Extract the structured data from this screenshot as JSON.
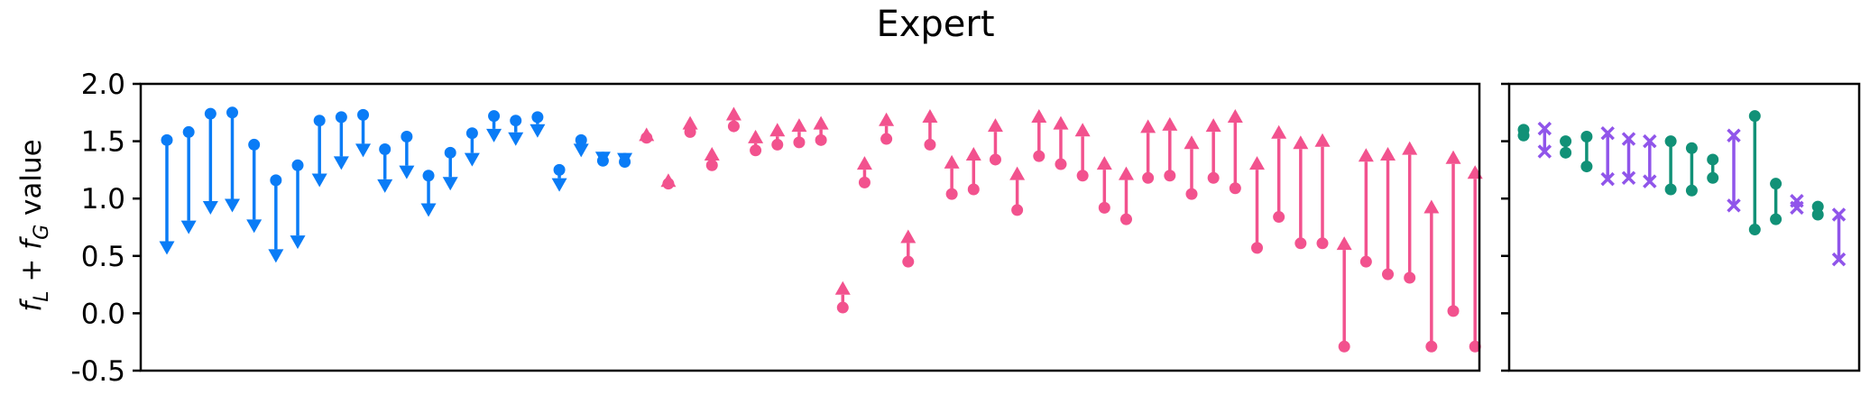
{
  "chart_data": [
    {
      "type": "arrow-range",
      "title": "Expert",
      "ylabel": {
        "prefix": "f",
        "sub1": "L",
        "plus": " + ",
        "f2": "f",
        "sub2": "G",
        "suffix": " value"
      },
      "ylim": [
        -0.5,
        2.0
      ],
      "yticks": [
        -0.5,
        0.0,
        0.5,
        1.0,
        1.5,
        2.0
      ],
      "ytick_labels": [
        "-0.5",
        "0.0",
        "0.5",
        "1.0",
        "1.5",
        "2.0"
      ],
      "xticks": "none",
      "colors": {
        "decrease": "#0a7cf6",
        "increase": "#f2528e"
      },
      "series": [
        {
          "direction": "decrease",
          "start": [
            1.51,
            1.58,
            1.74,
            1.75,
            1.47,
            1.16,
            1.29,
            1.68,
            1.71,
            1.73,
            1.43,
            1.54,
            1.2,
            1.4,
            1.57,
            1.72,
            1.68,
            1.71,
            1.25,
            1.51,
            1.33,
            1.32
          ],
          "end": [
            0.51,
            0.69,
            0.86,
            0.88,
            0.7,
            0.44,
            0.56,
            1.1,
            1.25,
            1.36,
            1.05,
            1.17,
            0.84,
            1.07,
            1.28,
            1.49,
            1.46,
            1.53,
            1.06,
            1.36,
            1.29,
            1.28
          ]
        },
        {
          "direction": "increase",
          "start": [
            1.53,
            1.13,
            1.58,
            1.29,
            1.63,
            1.42,
            1.47,
            1.49,
            1.51,
            0.05,
            1.14,
            1.52,
            0.45,
            1.47,
            1.04,
            1.08,
            1.34,
            0.9,
            1.37,
            1.3,
            1.2,
            0.92,
            0.82,
            1.18,
            1.2,
            1.04,
            1.18,
            1.09,
            0.57,
            0.84,
            0.61,
            0.61,
            -0.29,
            0.45,
            0.34,
            0.31,
            -0.29,
            0.02,
            -0.29
          ],
          "end": [
            1.62,
            1.22,
            1.72,
            1.45,
            1.8,
            1.6,
            1.66,
            1.7,
            1.72,
            0.28,
            1.37,
            1.75,
            0.73,
            1.78,
            1.38,
            1.45,
            1.7,
            1.28,
            1.78,
            1.72,
            1.66,
            1.37,
            1.28,
            1.69,
            1.71,
            1.55,
            1.7,
            1.78,
            1.37,
            1.64,
            1.55,
            1.57,
            0.67,
            1.44,
            1.45,
            1.5,
            0.99,
            1.42,
            1.29
          ]
        }
      ]
    },
    {
      "type": "range",
      "ylim": [
        -0.5,
        2.0
      ],
      "colors": {
        "circle": "#119177",
        "cross": "#9055ea"
      },
      "items": [
        {
          "marker": "circle",
          "top": 1.6,
          "bottom": 1.55
        },
        {
          "marker": "cross",
          "top": 1.61,
          "bottom": 1.41
        },
        {
          "marker": "circle",
          "top": 1.5,
          "bottom": 1.4
        },
        {
          "marker": "circle",
          "top": 1.54,
          "bottom": 1.28
        },
        {
          "marker": "cross",
          "top": 1.57,
          "bottom": 1.17
        },
        {
          "marker": "cross",
          "top": 1.52,
          "bottom": 1.18
        },
        {
          "marker": "cross",
          "top": 1.5,
          "bottom": 1.15
        },
        {
          "marker": "circle",
          "top": 1.5,
          "bottom": 1.08
        },
        {
          "marker": "circle",
          "top": 1.44,
          "bottom": 1.07
        },
        {
          "marker": "circle",
          "top": 1.34,
          "bottom": 1.18
        },
        {
          "marker": "cross",
          "top": 1.55,
          "bottom": 0.94
        },
        {
          "marker": "circle",
          "top": 1.72,
          "bottom": 0.73
        },
        {
          "marker": "circle",
          "top": 1.13,
          "bottom": 0.82
        },
        {
          "marker": "cross",
          "top": 0.98,
          "bottom": 0.92
        },
        {
          "marker": "circle",
          "top": 0.93,
          "bottom": 0.86
        },
        {
          "marker": "cross",
          "top": 0.86,
          "bottom": 0.47
        }
      ]
    }
  ]
}
